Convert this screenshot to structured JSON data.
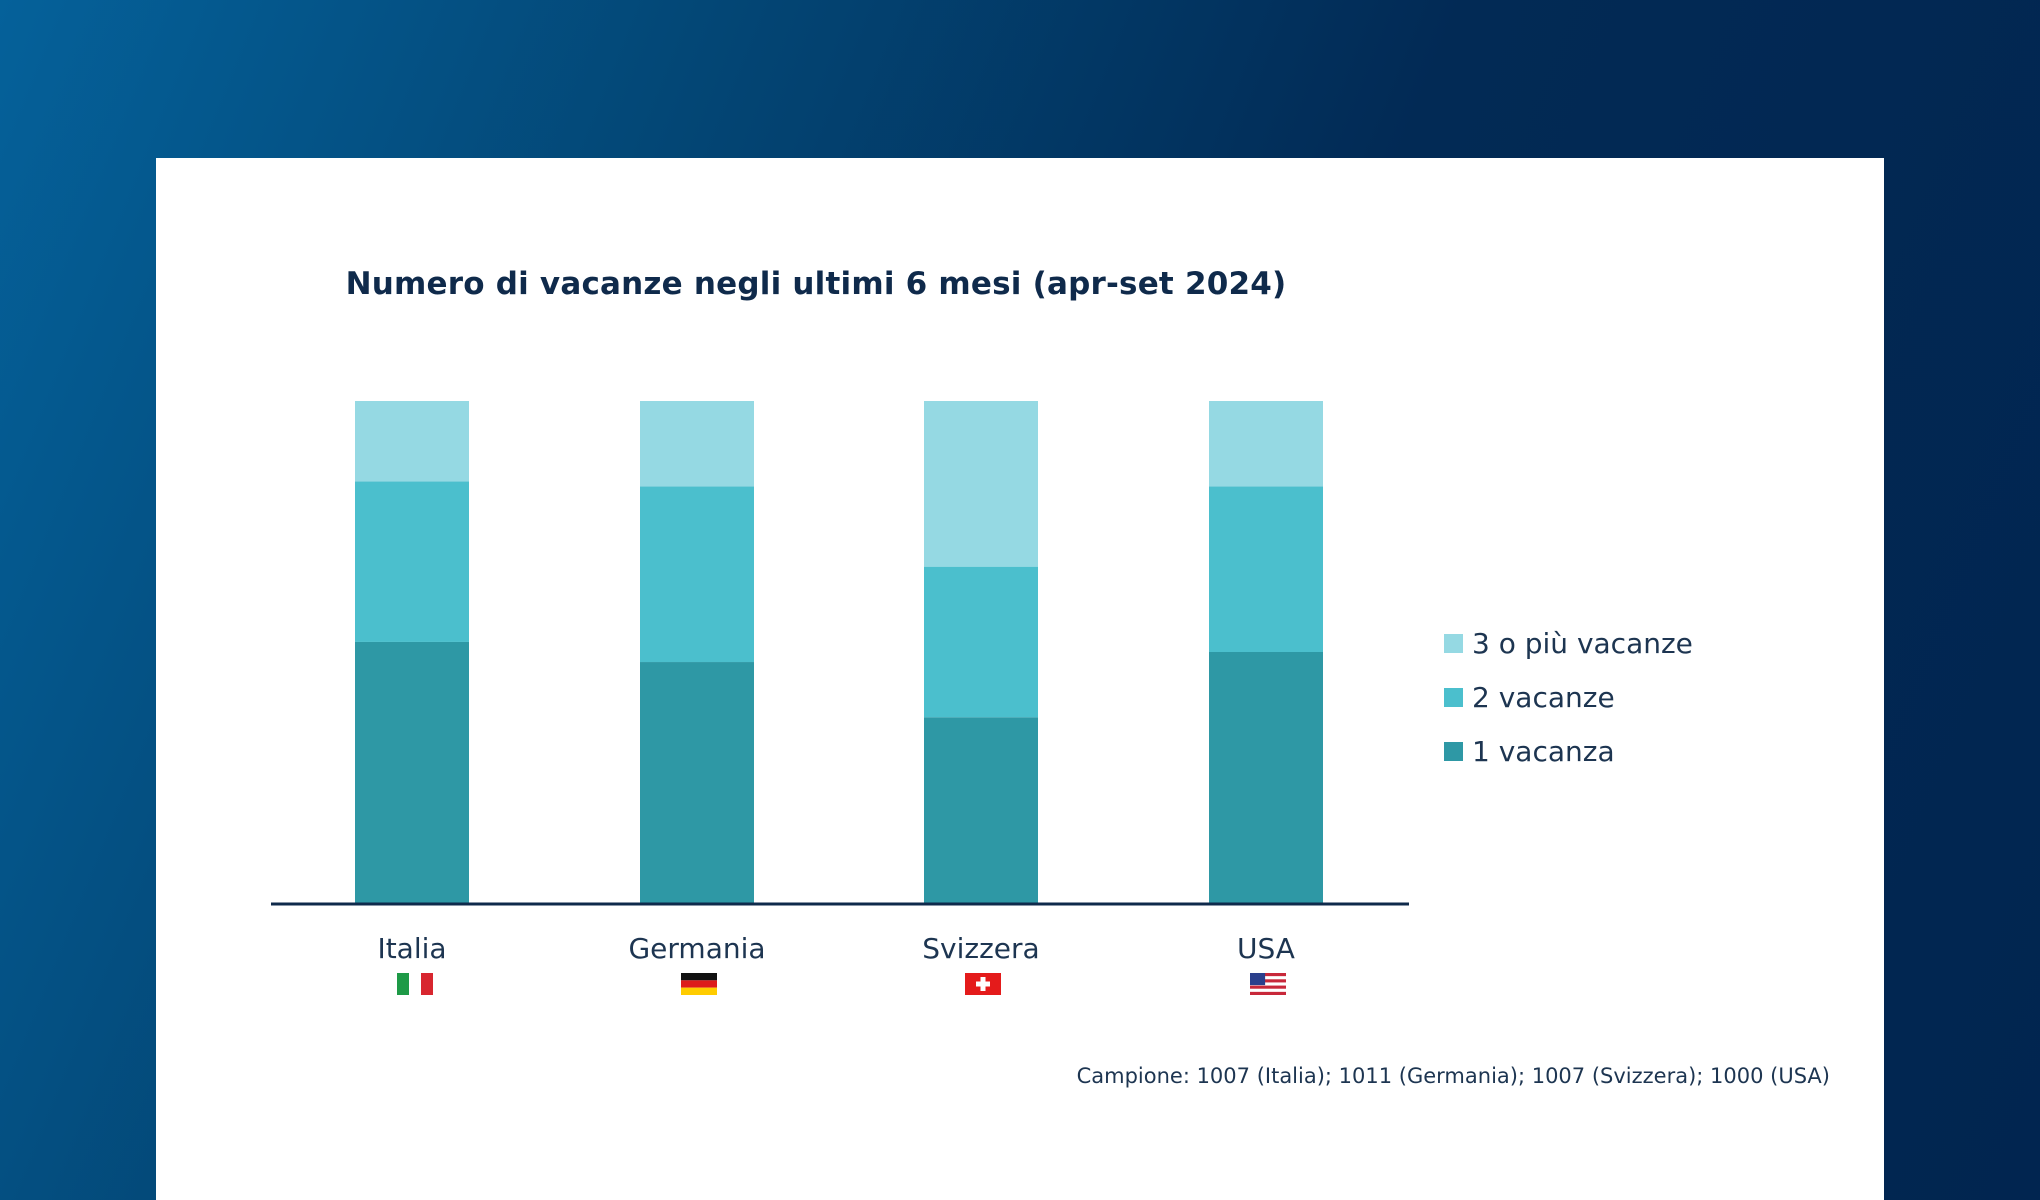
{
  "chart_data": {
    "type": "bar",
    "stacked": true,
    "title": "Numero di vacanze negli ultimi 6 mesi (apr-set 2024)",
    "categories": [
      "Italia",
      "Germania",
      "Svizzera",
      "USA"
    ],
    "category_flags": [
      "italy-flag-icon",
      "germany-flag-icon",
      "switzerland-flag-icon",
      "usa-flag-icon"
    ],
    "series": [
      {
        "name": "1 vacanza",
        "values": [
          52,
          48,
          37,
          50
        ],
        "color": "#2e98a5"
      },
      {
        "name": "2 vacanze",
        "values": [
          32,
          35,
          30,
          33
        ],
        "color": "#4bbfcd"
      },
      {
        "name": "3 o più vacanze",
        "values": [
          16,
          17,
          33,
          17
        ],
        "color": "#95d9e3"
      }
    ],
    "ylim": [
      0,
      100
    ],
    "grid": false,
    "y_axis_visible": false,
    "legend_position": "right",
    "footnote": "Campione: 1007 (Italia); 1011 (Germania); 1007 (Svizzera); 1000 (USA)"
  },
  "colors": {
    "background_gradient": [
      "#05619a",
      "#012550"
    ],
    "card": "#ffffff",
    "title": "#0f2a4b",
    "baseline": "#0f2a4b"
  }
}
